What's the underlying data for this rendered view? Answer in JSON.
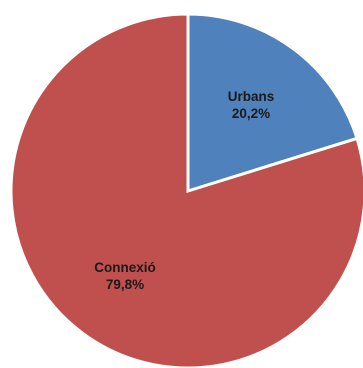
{
  "chart_data": {
    "type": "pie",
    "start_angle_deg": 0,
    "direction": "clockwise",
    "slices": [
      {
        "category": "Urbans",
        "value": 20.2,
        "value_label": "20,2%",
        "color": "#4f81bd"
      },
      {
        "category": "Connexió",
        "value": 79.8,
        "value_label": "79,8%",
        "color": "#c0504d"
      }
    ],
    "legend": "none"
  }
}
